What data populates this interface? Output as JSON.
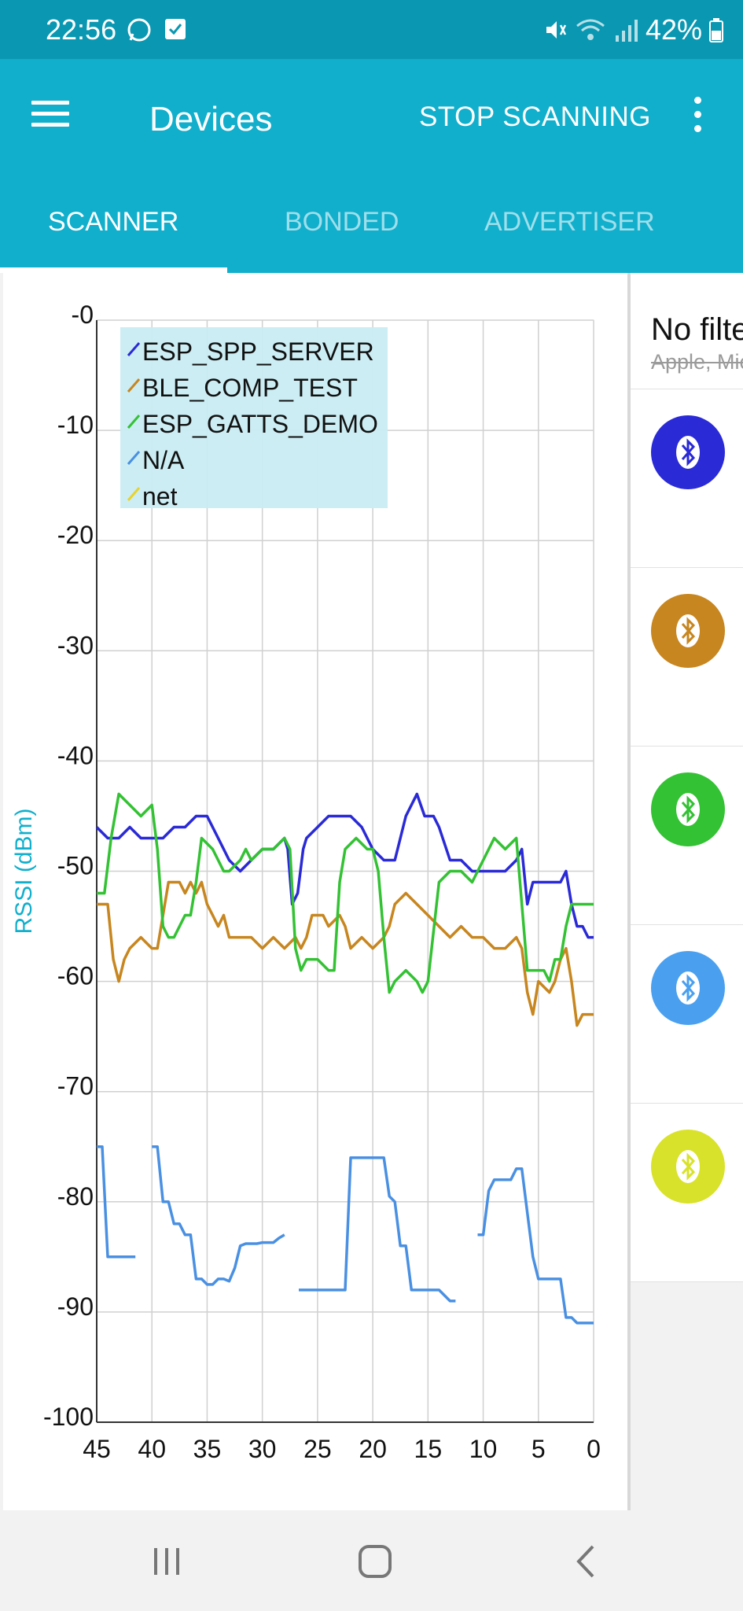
{
  "status_bar": {
    "time": "22:56",
    "battery": "42%",
    "icons": [
      "whatsapp-icon",
      "checkbox-icon",
      "mute-icon",
      "wifi-icon",
      "signal-icon",
      "battery-icon"
    ]
  },
  "app_bar": {
    "title": "Devices",
    "stop_label": "STOP SCANNING",
    "tabs": [
      {
        "label": "SCANNER",
        "active": true
      },
      {
        "label": "BONDED",
        "active": false
      },
      {
        "label": "ADVERTISER",
        "active": false
      }
    ],
    "color": "#11afcc"
  },
  "side_panel": {
    "filter_title": "No filter",
    "filter_sub": "Apple, Microsoft",
    "devices": [
      {
        "icon": "bluetooth-icon",
        "color": "#2a2ad6"
      },
      {
        "icon": "bluetooth-icon",
        "color": "#c7861f"
      },
      {
        "icon": "bluetooth-icon",
        "color": "#33c233"
      },
      {
        "icon": "bluetooth-icon",
        "color": "#4aa0ef"
      },
      {
        "icon": "bluetooth-icon",
        "color": "#d9e22a"
      }
    ]
  },
  "chart_data": {
    "type": "line",
    "title": "",
    "xlabel": "",
    "ylabel": "RSSI (dBm)",
    "xlim": [
      45,
      0
    ],
    "ylim": [
      -100,
      0
    ],
    "x_ticks": [
      "45",
      "40",
      "35",
      "30",
      "25",
      "20",
      "15",
      "10",
      "5",
      "0"
    ],
    "y_ticks": [
      "-0",
      "-10",
      "-20",
      "-30",
      "-40",
      "-50",
      "-60",
      "-70",
      "-80",
      "-90",
      "-100"
    ],
    "grid": true,
    "legend_position": "top-left",
    "series": [
      {
        "name": "ESP_SPP_SERVER",
        "color": "#2a2ad6",
        "points": [
          [
            45,
            -46
          ],
          [
            44,
            -47
          ],
          [
            43,
            -47
          ],
          [
            42,
            -46
          ],
          [
            41,
            -47
          ],
          [
            40,
            -47
          ],
          [
            39,
            -47
          ],
          [
            38,
            -46
          ],
          [
            37,
            -46
          ],
          [
            36,
            -45
          ],
          [
            35,
            -45
          ],
          [
            34,
            -47
          ],
          [
            33,
            -49
          ],
          [
            32,
            -50
          ],
          [
            31,
            -49
          ],
          [
            30,
            -48
          ],
          [
            29,
            -48
          ],
          [
            28,
            -47
          ],
          [
            27.7,
            -48
          ],
          [
            27.3,
            -53
          ],
          [
            26.8,
            -52
          ],
          [
            26.3,
            -48
          ],
          [
            26,
            -47
          ],
          [
            25,
            -46
          ],
          [
            24,
            -45
          ],
          [
            23,
            -45
          ],
          [
            22,
            -45
          ],
          [
            21,
            -46
          ],
          [
            20,
            -48
          ],
          [
            19,
            -49
          ],
          [
            18,
            -49
          ],
          [
            17.5,
            -47
          ],
          [
            17,
            -45
          ],
          [
            16,
            -43
          ],
          [
            15.3,
            -45
          ],
          [
            14.5,
            -45
          ],
          [
            14,
            -46
          ],
          [
            13,
            -49
          ],
          [
            12,
            -49
          ],
          [
            11,
            -50
          ],
          [
            10,
            -50
          ],
          [
            9,
            -50
          ],
          [
            8,
            -50
          ],
          [
            7,
            -49
          ],
          [
            6.5,
            -48
          ],
          [
            6,
            -53
          ],
          [
            5.5,
            -51
          ],
          [
            4,
            -51
          ],
          [
            3,
            -51
          ],
          [
            2.5,
            -50
          ],
          [
            2,
            -53
          ],
          [
            1.5,
            -55
          ],
          [
            1,
            -55
          ],
          [
            0.5,
            -56
          ],
          [
            0,
            -56
          ]
        ]
      },
      {
        "name": "BLE_COMP_TEST",
        "color": "#c7861f",
        "points": [
          [
            45,
            -53
          ],
          [
            44,
            -53
          ],
          [
            43.5,
            -58
          ],
          [
            43,
            -60
          ],
          [
            42.5,
            -58
          ],
          [
            42,
            -57
          ],
          [
            41,
            -56
          ],
          [
            40,
            -57
          ],
          [
            39.5,
            -57
          ],
          [
            39,
            -54
          ],
          [
            38.5,
            -51
          ],
          [
            37.5,
            -51
          ],
          [
            37,
            -52
          ],
          [
            36.5,
            -51
          ],
          [
            36,
            -52
          ],
          [
            35.5,
            -51
          ],
          [
            35,
            -53
          ],
          [
            34.5,
            -54
          ],
          [
            34,
            -55
          ],
          [
            33.5,
            -54
          ],
          [
            33,
            -56
          ],
          [
            32,
            -56
          ],
          [
            31,
            -56
          ],
          [
            30,
            -57
          ],
          [
            29,
            -56
          ],
          [
            28,
            -57
          ],
          [
            27,
            -56
          ],
          [
            26.5,
            -57
          ],
          [
            26,
            -56
          ],
          [
            25.5,
            -54
          ],
          [
            24.5,
            -54
          ],
          [
            24,
            -55
          ],
          [
            23,
            -54
          ],
          [
            22.5,
            -55
          ],
          [
            22,
            -57
          ],
          [
            21,
            -56
          ],
          [
            20,
            -57
          ],
          [
            19,
            -56
          ],
          [
            18.5,
            -55
          ],
          [
            18,
            -53
          ],
          [
            17,
            -52
          ],
          [
            16,
            -53
          ],
          [
            15,
            -54
          ],
          [
            14,
            -55
          ],
          [
            13,
            -56
          ],
          [
            12,
            -55
          ],
          [
            11,
            -56
          ],
          [
            10,
            -56
          ],
          [
            9,
            -57
          ],
          [
            8,
            -57
          ],
          [
            7,
            -56
          ],
          [
            6.5,
            -57
          ],
          [
            6,
            -61
          ],
          [
            5.5,
            -63
          ],
          [
            5,
            -60
          ],
          [
            4,
            -61
          ],
          [
            3.5,
            -60
          ],
          [
            3,
            -58
          ],
          [
            2.5,
            -57
          ],
          [
            2,
            -60
          ],
          [
            1.5,
            -64
          ],
          [
            1,
            -63
          ],
          [
            0.5,
            -63
          ],
          [
            0,
            -63
          ]
        ]
      },
      {
        "name": "ESP_GATTS_DEMO",
        "color": "#33c233",
        "points": [
          [
            45,
            -52
          ],
          [
            44.3,
            -52
          ],
          [
            43.7,
            -47
          ],
          [
            43,
            -43
          ],
          [
            42,
            -44
          ],
          [
            41,
            -45
          ],
          [
            40,
            -44
          ],
          [
            39.5,
            -48
          ],
          [
            39,
            -55
          ],
          [
            38.5,
            -56
          ],
          [
            38,
            -56
          ],
          [
            37.5,
            -55
          ],
          [
            37,
            -54
          ],
          [
            36.5,
            -54
          ],
          [
            36,
            -51
          ],
          [
            35.5,
            -47
          ],
          [
            34.5,
            -48
          ],
          [
            33.5,
            -50
          ],
          [
            33,
            -50
          ],
          [
            32,
            -49
          ],
          [
            31.5,
            -48
          ],
          [
            31,
            -49
          ],
          [
            30,
            -48
          ],
          [
            29,
            -48
          ],
          [
            28,
            -47
          ],
          [
            27.5,
            -48
          ],
          [
            27,
            -57
          ],
          [
            26.5,
            -59
          ],
          [
            26,
            -58
          ],
          [
            25,
            -58
          ],
          [
            24,
            -59
          ],
          [
            23.5,
            -59
          ],
          [
            23,
            -51
          ],
          [
            22.5,
            -48
          ],
          [
            21.5,
            -47
          ],
          [
            20.5,
            -48
          ],
          [
            20,
            -48
          ],
          [
            19.5,
            -50
          ],
          [
            19,
            -56
          ],
          [
            18.5,
            -61
          ],
          [
            18,
            -60
          ],
          [
            17,
            -59
          ],
          [
            16,
            -60
          ],
          [
            15.5,
            -61
          ],
          [
            15,
            -60
          ],
          [
            14,
            -51
          ],
          [
            13,
            -50
          ],
          [
            12,
            -50
          ],
          [
            11,
            -51
          ],
          [
            10,
            -49
          ],
          [
            9,
            -47
          ],
          [
            8,
            -48
          ],
          [
            7,
            -47
          ],
          [
            6.5,
            -53
          ],
          [
            6,
            -59
          ],
          [
            5.5,
            -59
          ],
          [
            4.5,
            -59
          ],
          [
            4,
            -60
          ],
          [
            3.5,
            -58
          ],
          [
            3,
            -58
          ],
          [
            2.5,
            -55
          ],
          [
            2,
            -53
          ],
          [
            1,
            -53
          ],
          [
            0,
            -53
          ]
        ]
      },
      {
        "name": "N/A",
        "color": "#4a90e2",
        "segments": [
          [
            [
              45,
              -75
            ],
            [
              44.5,
              -75
            ],
            [
              44,
              -85
            ],
            [
              43,
              -85
            ],
            [
              42.5,
              -85
            ],
            [
              42,
              -85
            ],
            [
              41.5,
              -85
            ]
          ],
          [
            [
              40,
              -75
            ],
            [
              39.5,
              -75
            ],
            [
              39,
              -80
            ],
            [
              38.5,
              -80
            ],
            [
              38,
              -82
            ],
            [
              37.5,
              -82
            ],
            [
              37,
              -83
            ],
            [
              36.5,
              -83
            ],
            [
              36,
              -87
            ],
            [
              35.5,
              -87
            ],
            [
              35,
              -87.5
            ],
            [
              34.5,
              -87.5
            ],
            [
              34,
              -87
            ],
            [
              33.5,
              -87
            ],
            [
              33,
              -87.2
            ],
            [
              32.5,
              -86
            ],
            [
              32,
              -84
            ],
            [
              31.5,
              -83.8
            ],
            [
              30.5,
              -83.8
            ],
            [
              30,
              -83.7
            ],
            [
              29,
              -83.7
            ],
            [
              28.5,
              -83.3
            ],
            [
              28,
              -83
            ]
          ],
          [
            [
              26.7,
              -88
            ],
            [
              25,
              -88
            ],
            [
              23,
              -88
            ],
            [
              22.5,
              -88
            ],
            [
              22,
              -76
            ],
            [
              20.5,
              -76
            ],
            [
              19.5,
              -76
            ],
            [
              19,
              -76
            ],
            [
              18.5,
              -79.5
            ],
            [
              18,
              -80
            ],
            [
              17.5,
              -84
            ],
            [
              17,
              -84
            ],
            [
              16.5,
              -88
            ],
            [
              15.5,
              -88
            ],
            [
              14.5,
              -88
            ],
            [
              14,
              -88
            ],
            [
              13.5,
              -88.5
            ],
            [
              13,
              -89
            ],
            [
              12.5,
              -89
            ]
          ],
          [
            [
              10.5,
              -83
            ],
            [
              10,
              -83
            ],
            [
              9.5,
              -79
            ],
            [
              9,
              -78
            ],
            [
              8,
              -78
            ],
            [
              7.5,
              -78
            ],
            [
              7,
              -77
            ],
            [
              6.5,
              -77
            ],
            [
              6,
              -81
            ],
            [
              5.5,
              -85
            ],
            [
              5,
              -87
            ],
            [
              4.5,
              -87
            ],
            [
              4,
              -87
            ],
            [
              3,
              -87
            ],
            [
              2.5,
              -90.5
            ],
            [
              2,
              -90.5
            ],
            [
              1.5,
              -91
            ],
            [
              1,
              -91
            ],
            [
              0,
              -91
            ]
          ]
        ]
      },
      {
        "name": "net",
        "color": "#e8d32a",
        "points": []
      }
    ]
  }
}
